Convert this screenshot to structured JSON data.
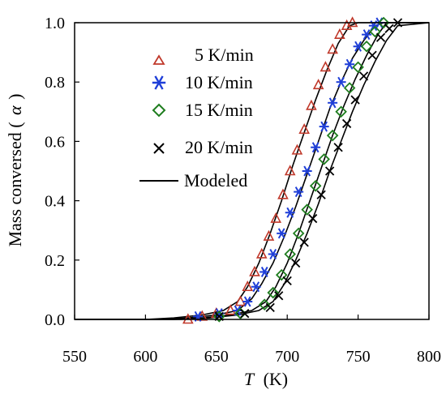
{
  "chart_data": {
    "type": "scatter",
    "xlabel": "T (K)",
    "xlabel_var": "T",
    "xlabel_unit": "(K)",
    "ylabel": "Mass conversed (α)",
    "ylabel_text": "Mass conversed (",
    "ylabel_var": "α",
    "ylabel_close": ")",
    "xlim": [
      550,
      800
    ],
    "ylim": [
      0,
      1.0
    ],
    "xticks": [
      550,
      600,
      650,
      700,
      750,
      800
    ],
    "xtick_labels": [
      "550",
      "600",
      "650",
      "700",
      "750",
      "800"
    ],
    "yticks": [
      0,
      0.2,
      0.4,
      0.6,
      0.8,
      1.0
    ],
    "ytick_labels": [
      "0.0",
      "0.2",
      "0.4",
      "0.6",
      "0.8",
      "1.0"
    ],
    "grid": false,
    "legend_position": "top-left",
    "series": [
      {
        "name": "5 K/min",
        "marker": "triangle",
        "color": "#c0392b",
        "x": [
          630,
          640,
          650,
          660,
          667,
          672,
          677,
          682,
          687,
          692,
          697,
          702,
          707,
          712,
          717,
          722,
          727,
          732,
          737,
          742,
          746
        ],
        "y": [
          0.0,
          0.01,
          0.02,
          0.03,
          0.06,
          0.11,
          0.16,
          0.22,
          0.28,
          0.34,
          0.42,
          0.5,
          0.57,
          0.64,
          0.72,
          0.79,
          0.85,
          0.91,
          0.96,
          0.99,
          1.0
        ]
      },
      {
        "name": "10 K/min",
        "marker": "asterisk",
        "color": "#1f3fd8",
        "x": [
          637,
          652,
          665,
          672,
          678,
          684,
          690,
          696,
          702,
          708,
          714,
          720,
          726,
          732,
          738,
          744,
          750,
          756,
          761,
          765
        ],
        "y": [
          0.01,
          0.02,
          0.03,
          0.06,
          0.11,
          0.16,
          0.22,
          0.29,
          0.36,
          0.43,
          0.5,
          0.58,
          0.65,
          0.73,
          0.8,
          0.86,
          0.92,
          0.96,
          0.99,
          1.0
        ]
      },
      {
        "name": "15 K/min",
        "marker": "diamond",
        "color": "#1e7d1e",
        "x": [
          652,
          667,
          684,
          690,
          696,
          702,
          708,
          714,
          720,
          726,
          732,
          738,
          744,
          750,
          756,
          762,
          768
        ],
        "y": [
          0.01,
          0.02,
          0.05,
          0.09,
          0.15,
          0.22,
          0.29,
          0.37,
          0.45,
          0.54,
          0.62,
          0.7,
          0.78,
          0.85,
          0.92,
          0.97,
          1.0
        ]
      },
      {
        "name": "20 K/min",
        "marker": "cross",
        "color": "#000000",
        "x": [
          652,
          670,
          688,
          694,
          700,
          706,
          712,
          718,
          724,
          730,
          736,
          742,
          748,
          754,
          760,
          766,
          772,
          778
        ],
        "y": [
          0.01,
          0.02,
          0.04,
          0.08,
          0.13,
          0.19,
          0.26,
          0.34,
          0.42,
          0.5,
          0.58,
          0.66,
          0.74,
          0.82,
          0.89,
          0.95,
          0.98,
          1.0
        ]
      }
    ],
    "model_series": {
      "name": "Modeled",
      "color": "#000000",
      "curves": [
        {
          "x": [
            550,
            600,
            620,
            640,
            655,
            665,
            672,
            680,
            688,
            696,
            704,
            712,
            720,
            728,
            736,
            744,
            750,
            800
          ],
          "y": [
            0,
            0.0,
            0.005,
            0.015,
            0.03,
            0.06,
            0.11,
            0.19,
            0.29,
            0.4,
            0.52,
            0.63,
            0.74,
            0.84,
            0.93,
            0.99,
            1.0,
            1.0
          ]
        },
        {
          "x": [
            550,
            610,
            630,
            650,
            665,
            675,
            682,
            690,
            698,
            706,
            714,
            722,
            730,
            738,
            746,
            754,
            762,
            768,
            800
          ],
          "y": [
            0,
            0.0,
            0.005,
            0.015,
            0.03,
            0.07,
            0.12,
            0.19,
            0.28,
            0.38,
            0.49,
            0.6,
            0.71,
            0.8,
            0.88,
            0.94,
            0.99,
            1.0,
            1.0
          ]
        },
        {
          "x": [
            550,
            620,
            640,
            660,
            675,
            685,
            692,
            700,
            708,
            716,
            724,
            732,
            740,
            748,
            756,
            764,
            770,
            800
          ],
          "y": [
            0,
            0.0,
            0.005,
            0.015,
            0.03,
            0.06,
            0.11,
            0.19,
            0.29,
            0.4,
            0.51,
            0.62,
            0.72,
            0.81,
            0.89,
            0.96,
            1.0,
            1.0
          ]
        },
        {
          "x": [
            550,
            625,
            645,
            665,
            680,
            690,
            698,
            706,
            714,
            722,
            730,
            738,
            746,
            754,
            762,
            770,
            778,
            800
          ],
          "y": [
            0,
            0.0,
            0.005,
            0.015,
            0.03,
            0.06,
            0.12,
            0.2,
            0.29,
            0.39,
            0.5,
            0.6,
            0.7,
            0.79,
            0.87,
            0.94,
            0.99,
            1.0
          ]
        }
      ]
    }
  }
}
